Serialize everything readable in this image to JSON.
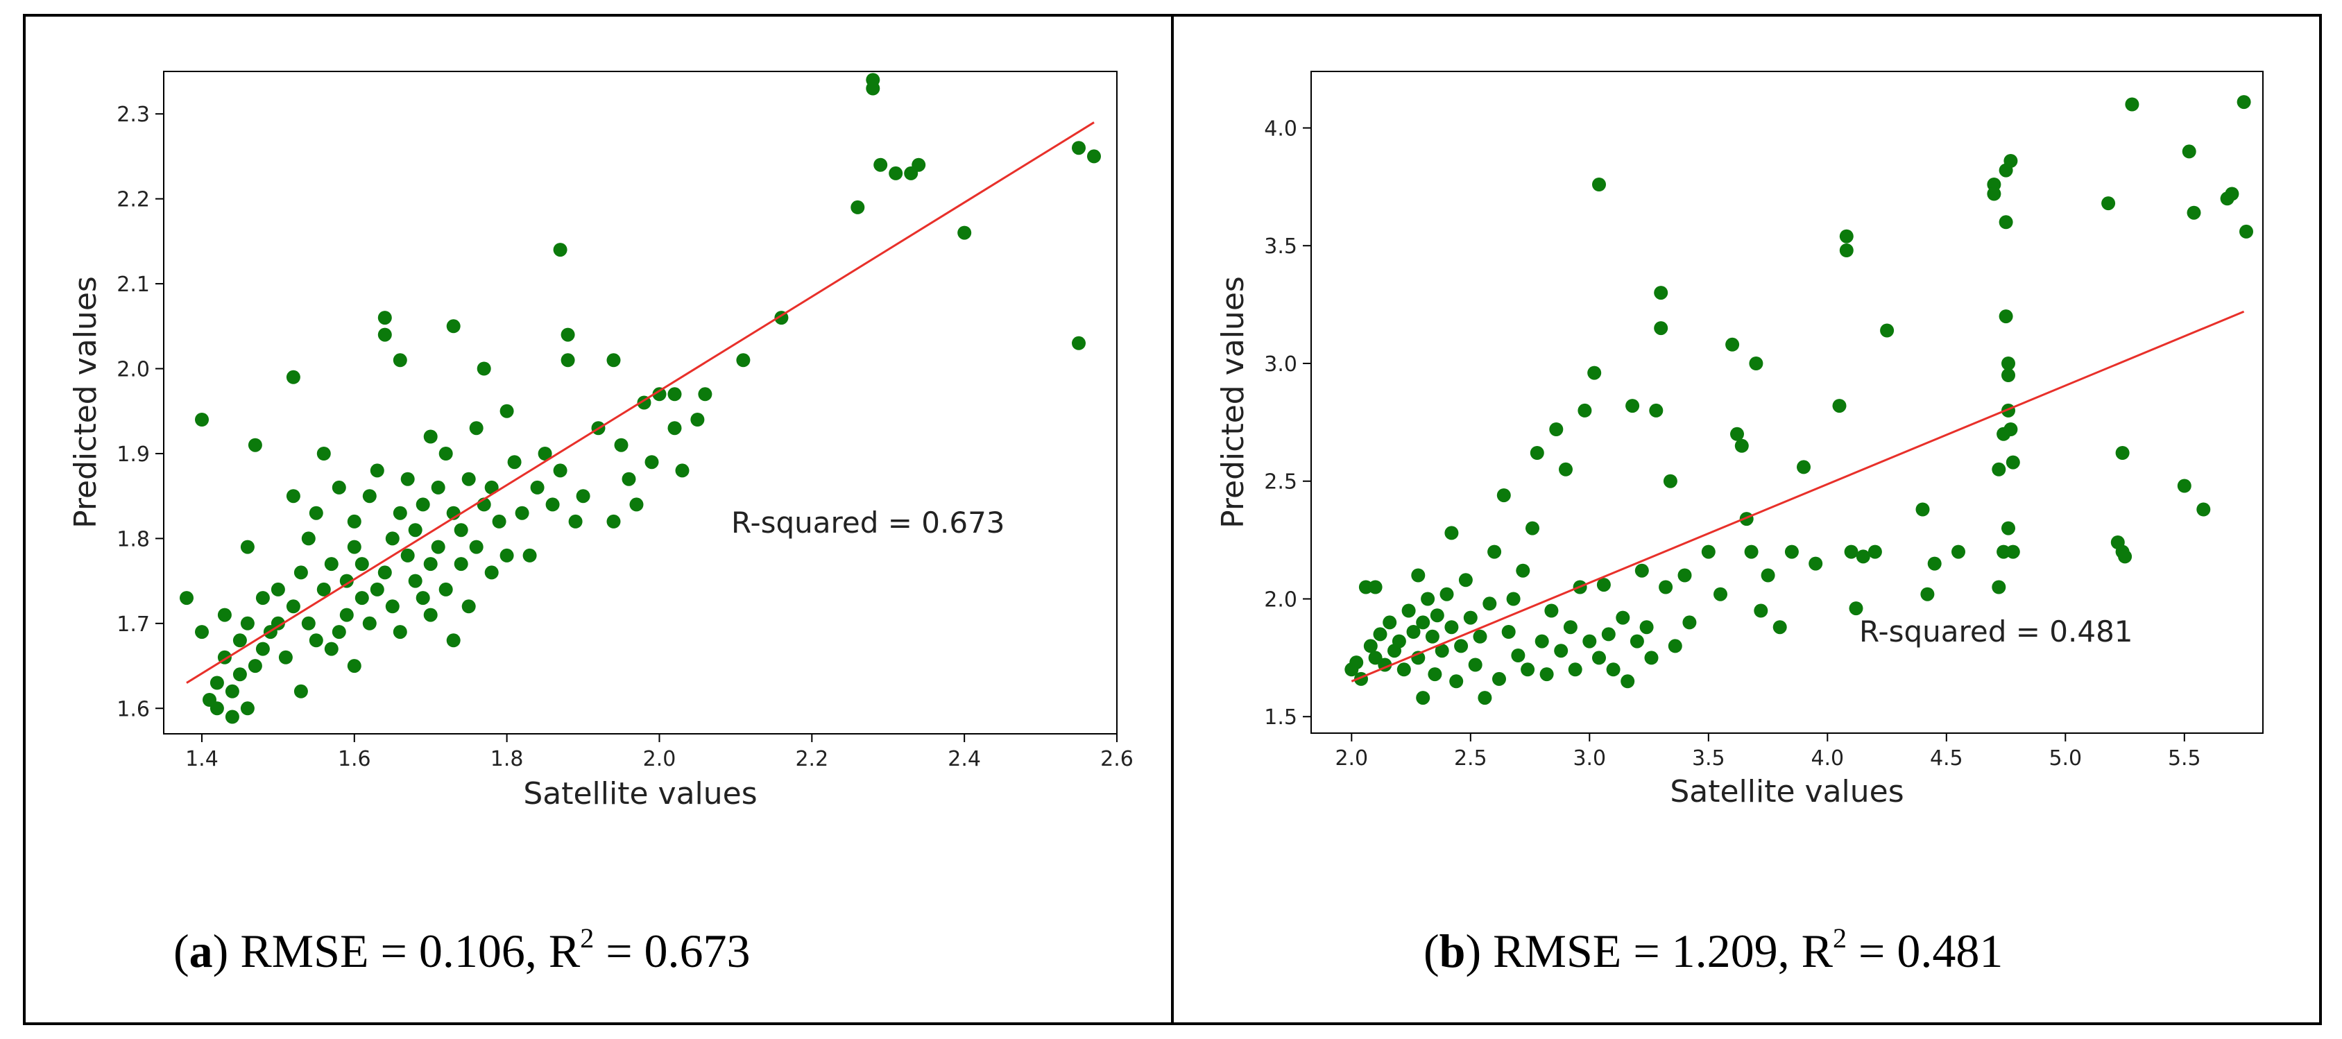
{
  "colors": {
    "points": "#0b7a0b",
    "fit_line": "#e8302a",
    "frame": "#000000"
  },
  "captions": [
    {
      "letter": "a",
      "text": "RMSE = 0.106, R",
      "sup": "2",
      "tail": " = 0.673"
    },
    {
      "letter": "b",
      "text": "RMSE = 1.209, R",
      "sup": "2",
      "tail": " = 0.481"
    }
  ],
  "chart_data": [
    {
      "type": "scatter",
      "xlabel": "Satellite values",
      "ylabel": "Predicted values",
      "xlim": [
        1.35,
        2.6
      ],
      "ylim": [
        1.57,
        2.35
      ],
      "xticks": [
        1.4,
        1.6,
        1.8,
        2.0,
        2.2,
        2.4,
        2.6
      ],
      "xtick_labels": [
        "1.4",
        "1.6",
        "1.8",
        "2.0",
        "2.2",
        "2.4",
        "2.6"
      ],
      "yticks": [
        1.6,
        1.7,
        1.8,
        1.9,
        2.0,
        2.1,
        2.2,
        2.3
      ],
      "ytick_labels": [
        "1.6",
        "1.7",
        "1.8",
        "1.9",
        "2.0",
        "2.1",
        "2.2",
        "2.3"
      ],
      "annotation": "R-squared = 0.673",
      "fit_line": {
        "x": [
          1.38,
          2.57
        ],
        "y": [
          1.63,
          2.29
        ]
      },
      "points": [
        [
          1.38,
          1.73
        ],
        [
          1.4,
          1.94
        ],
        [
          1.4,
          1.69
        ],
        [
          1.41,
          1.61
        ],
        [
          1.42,
          1.63
        ],
        [
          1.42,
          1.6
        ],
        [
          1.43,
          1.66
        ],
        [
          1.43,
          1.71
        ],
        [
          1.44,
          1.59
        ],
        [
          1.44,
          1.62
        ],
        [
          1.45,
          1.64
        ],
        [
          1.45,
          1.68
        ],
        [
          1.46,
          1.6
        ],
        [
          1.46,
          1.7
        ],
        [
          1.46,
          1.79
        ],
        [
          1.47,
          1.91
        ],
        [
          1.47,
          1.65
        ],
        [
          1.48,
          1.73
        ],
        [
          1.48,
          1.67
        ],
        [
          1.49,
          1.69
        ],
        [
          1.5,
          1.7
        ],
        [
          1.5,
          1.74
        ],
        [
          1.51,
          1.66
        ],
        [
          1.52,
          1.99
        ],
        [
          1.52,
          1.85
        ],
        [
          1.52,
          1.72
        ],
        [
          1.53,
          1.62
        ],
        [
          1.53,
          1.76
        ],
        [
          1.54,
          1.7
        ],
        [
          1.54,
          1.8
        ],
        [
          1.55,
          1.68
        ],
        [
          1.55,
          1.83
        ],
        [
          1.56,
          1.9
        ],
        [
          1.56,
          1.74
        ],
        [
          1.57,
          1.67
        ],
        [
          1.57,
          1.77
        ],
        [
          1.58,
          1.69
        ],
        [
          1.58,
          1.86
        ],
        [
          1.59,
          1.71
        ],
        [
          1.59,
          1.75
        ],
        [
          1.6,
          1.79
        ],
        [
          1.6,
          1.65
        ],
        [
          1.6,
          1.82
        ],
        [
          1.61,
          1.73
        ],
        [
          1.61,
          1.77
        ],
        [
          1.62,
          1.7
        ],
        [
          1.62,
          1.85
        ],
        [
          1.63,
          1.74
        ],
        [
          1.63,
          1.88
        ],
        [
          1.64,
          2.06
        ],
        [
          1.64,
          2.04
        ],
        [
          1.64,
          1.76
        ],
        [
          1.65,
          1.72
        ],
        [
          1.65,
          1.8
        ],
        [
          1.66,
          2.01
        ],
        [
          1.66,
          1.83
        ],
        [
          1.66,
          1.69
        ],
        [
          1.67,
          1.78
        ],
        [
          1.67,
          1.87
        ],
        [
          1.68,
          1.75
        ],
        [
          1.68,
          1.81
        ],
        [
          1.69,
          1.73
        ],
        [
          1.69,
          1.84
        ],
        [
          1.7,
          1.92
        ],
        [
          1.7,
          1.77
        ],
        [
          1.7,
          1.71
        ],
        [
          1.71,
          1.86
        ],
        [
          1.71,
          1.79
        ],
        [
          1.72,
          1.74
        ],
        [
          1.72,
          1.9
        ],
        [
          1.73,
          2.05
        ],
        [
          1.73,
          1.83
        ],
        [
          1.73,
          1.68
        ],
        [
          1.74,
          1.77
        ],
        [
          1.74,
          1.81
        ],
        [
          1.75,
          1.87
        ],
        [
          1.75,
          1.72
        ],
        [
          1.76,
          1.93
        ],
        [
          1.76,
          1.79
        ],
        [
          1.77,
          2.0
        ],
        [
          1.77,
          1.84
        ],
        [
          1.78,
          1.76
        ],
        [
          1.78,
          1.86
        ],
        [
          1.79,
          1.82
        ],
        [
          1.8,
          1.78
        ],
        [
          1.8,
          1.95
        ],
        [
          1.81,
          1.89
        ],
        [
          1.82,
          1.83
        ],
        [
          1.83,
          1.78
        ],
        [
          1.84,
          1.86
        ],
        [
          1.85,
          1.9
        ],
        [
          1.86,
          1.84
        ],
        [
          1.87,
          2.14
        ],
        [
          1.87,
          1.88
        ],
        [
          1.88,
          2.01
        ],
        [
          1.88,
          2.04
        ],
        [
          1.89,
          1.82
        ],
        [
          1.9,
          1.85
        ],
        [
          1.92,
          1.93
        ],
        [
          1.94,
          2.01
        ],
        [
          1.94,
          1.82
        ],
        [
          1.95,
          1.91
        ],
        [
          1.96,
          1.87
        ],
        [
          1.97,
          1.84
        ],
        [
          1.98,
          1.96
        ],
        [
          1.99,
          1.89
        ],
        [
          2.0,
          1.97
        ],
        [
          2.02,
          1.97
        ],
        [
          2.02,
          1.93
        ],
        [
          2.03,
          1.88
        ],
        [
          2.05,
          1.94
        ],
        [
          2.06,
          1.97
        ],
        [
          2.11,
          2.01
        ],
        [
          2.16,
          2.06
        ],
        [
          2.26,
          2.19
        ],
        [
          2.28,
          2.33
        ],
        [
          2.28,
          2.34
        ],
        [
          2.29,
          2.24
        ],
        [
          2.31,
          2.23
        ],
        [
          2.33,
          2.23
        ],
        [
          2.34,
          2.24
        ],
        [
          2.4,
          2.16
        ],
        [
          2.55,
          2.26
        ],
        [
          2.55,
          2.03
        ],
        [
          2.57,
          2.25
        ]
      ]
    },
    {
      "type": "scatter",
      "xlabel": "Satellite values",
      "ylabel": "Predicted values",
      "xlim": [
        1.83,
        5.83
      ],
      "ylim": [
        1.43,
        4.24
      ],
      "xticks": [
        2.0,
        2.5,
        3.0,
        3.5,
        4.0,
        4.5,
        5.0,
        5.5
      ],
      "xtick_labels": [
        "2.0",
        "2.5",
        "3.0",
        "3.5",
        "4.0",
        "4.5",
        "5.0",
        "5.5"
      ],
      "yticks": [
        1.5,
        2.0,
        2.5,
        3.0,
        3.5,
        4.0
      ],
      "ytick_labels": [
        "1.5",
        "2.0",
        "2.5",
        "3.0",
        "3.5",
        "4.0"
      ],
      "annotation": "R-squared = 0.481",
      "fit_line": {
        "x": [
          2.0,
          5.75
        ],
        "y": [
          1.65,
          3.22
        ]
      },
      "points": [
        [
          2.0,
          1.7
        ],
        [
          2.02,
          1.73
        ],
        [
          2.04,
          1.66
        ],
        [
          2.06,
          2.05
        ],
        [
          2.08,
          1.8
        ],
        [
          2.1,
          1.75
        ],
        [
          2.1,
          2.05
        ],
        [
          2.12,
          1.85
        ],
        [
          2.14,
          1.72
        ],
        [
          2.16,
          1.9
        ],
        [
          2.18,
          1.78
        ],
        [
          2.2,
          1.82
        ],
        [
          2.22,
          1.7
        ],
        [
          2.24,
          1.95
        ],
        [
          2.26,
          1.86
        ],
        [
          2.28,
          2.1
        ],
        [
          2.28,
          1.75
        ],
        [
          2.3,
          1.58
        ],
        [
          2.3,
          1.9
        ],
        [
          2.32,
          2.0
        ],
        [
          2.34,
          1.84
        ],
        [
          2.35,
          1.68
        ],
        [
          2.36,
          1.93
        ],
        [
          2.38,
          1.78
        ],
        [
          2.4,
          2.02
        ],
        [
          2.42,
          1.88
        ],
        [
          2.42,
          2.28
        ],
        [
          2.44,
          1.65
        ],
        [
          2.46,
          1.8
        ],
        [
          2.48,
          2.08
        ],
        [
          2.5,
          1.92
        ],
        [
          2.52,
          1.72
        ],
        [
          2.54,
          1.84
        ],
        [
          2.56,
          1.58
        ],
        [
          2.58,
          1.98
        ],
        [
          2.6,
          2.2
        ],
        [
          2.62,
          1.66
        ],
        [
          2.64,
          2.44
        ],
        [
          2.66,
          1.86
        ],
        [
          2.68,
          2.0
        ],
        [
          2.7,
          1.76
        ],
        [
          2.72,
          2.12
        ],
        [
          2.74,
          1.7
        ],
        [
          2.76,
          2.3
        ],
        [
          2.78,
          2.62
        ],
        [
          2.8,
          1.82
        ],
        [
          2.82,
          1.68
        ],
        [
          2.84,
          1.95
        ],
        [
          2.86,
          2.72
        ],
        [
          2.88,
          1.78
        ],
        [
          2.9,
          2.55
        ],
        [
          2.92,
          1.88
        ],
        [
          2.94,
          1.7
        ],
        [
          2.96,
          2.05
        ],
        [
          2.98,
          2.8
        ],
        [
          3.0,
          1.82
        ],
        [
          3.02,
          2.96
        ],
        [
          3.04,
          1.75
        ],
        [
          3.04,
          3.76
        ],
        [
          3.06,
          2.06
        ],
        [
          3.08,
          1.85
        ],
        [
          3.1,
          1.7
        ],
        [
          3.14,
          1.92
        ],
        [
          3.16,
          1.65
        ],
        [
          3.18,
          2.82
        ],
        [
          3.2,
          1.82
        ],
        [
          3.22,
          2.12
        ],
        [
          3.24,
          1.88
        ],
        [
          3.26,
          1.75
        ],
        [
          3.28,
          2.8
        ],
        [
          3.3,
          3.3
        ],
        [
          3.3,
          3.15
        ],
        [
          3.32,
          2.05
        ],
        [
          3.34,
          2.5
        ],
        [
          3.36,
          1.8
        ],
        [
          3.4,
          2.1
        ],
        [
          3.42,
          1.9
        ],
        [
          3.5,
          2.2
        ],
        [
          3.55,
          2.02
        ],
        [
          3.6,
          3.08
        ],
        [
          3.62,
          2.7
        ],
        [
          3.64,
          2.65
        ],
        [
          3.66,
          2.34
        ],
        [
          3.68,
          2.2
        ],
        [
          3.7,
          3.0
        ],
        [
          3.72,
          1.95
        ],
        [
          3.75,
          2.1
        ],
        [
          3.8,
          1.88
        ],
        [
          3.85,
          2.2
        ],
        [
          3.9,
          2.56
        ],
        [
          3.95,
          2.15
        ],
        [
          4.05,
          2.82
        ],
        [
          4.08,
          3.48
        ],
        [
          4.08,
          3.54
        ],
        [
          4.1,
          2.2
        ],
        [
          4.12,
          1.96
        ],
        [
          4.15,
          2.18
        ],
        [
          4.2,
          2.2
        ],
        [
          4.25,
          3.14
        ],
        [
          4.4,
          2.38
        ],
        [
          4.42,
          2.02
        ],
        [
          4.45,
          2.15
        ],
        [
          4.55,
          2.2
        ],
        [
          4.7,
          3.76
        ],
        [
          4.7,
          3.72
        ],
        [
          4.72,
          2.55
        ],
        [
          4.72,
          2.05
        ],
        [
          4.74,
          2.7
        ],
        [
          4.74,
          2.2
        ],
        [
          4.75,
          3.82
        ],
        [
          4.75,
          3.6
        ],
        [
          4.75,
          3.2
        ],
        [
          4.76,
          3.0
        ],
        [
          4.76,
          2.8
        ],
        [
          4.76,
          2.95
        ],
        [
          4.76,
          2.3
        ],
        [
          4.77,
          3.86
        ],
        [
          4.77,
          2.72
        ],
        [
          4.78,
          2.58
        ],
        [
          4.78,
          2.2
        ],
        [
          5.18,
          3.68
        ],
        [
          5.22,
          2.24
        ],
        [
          5.24,
          2.62
        ],
        [
          5.24,
          2.2
        ],
        [
          5.25,
          2.18
        ],
        [
          5.28,
          4.1
        ],
        [
          5.5,
          2.48
        ],
        [
          5.52,
          3.9
        ],
        [
          5.54,
          3.64
        ],
        [
          5.58,
          2.38
        ],
        [
          5.68,
          3.7
        ],
        [
          5.7,
          3.72
        ],
        [
          5.75,
          4.11
        ],
        [
          5.76,
          3.56
        ]
      ]
    }
  ]
}
